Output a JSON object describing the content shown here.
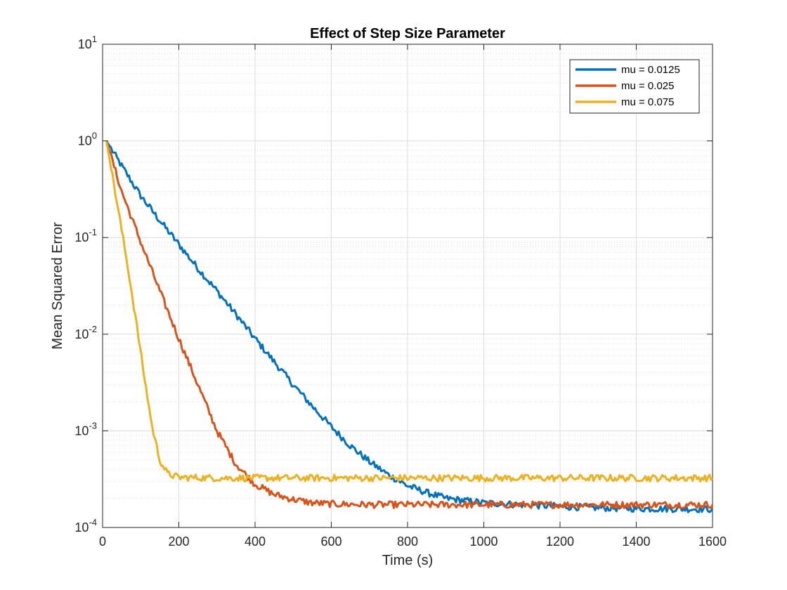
{
  "chart_data": {
    "type": "line",
    "title": "Effect of Step Size Parameter",
    "xlabel": "Time (s)",
    "ylabel": "Mean Squared Error",
    "xlim": [
      0,
      1600
    ],
    "ylim": [
      0.0001,
      10
    ],
    "yscale": "log",
    "grid": true,
    "minor_grid": true,
    "legend_position": "top-right",
    "x_ticks": [
      0,
      200,
      400,
      600,
      800,
      1000,
      1200,
      1400,
      1600
    ],
    "x_tick_labels": [
      "0",
      "200",
      "400",
      "600",
      "800",
      "1000",
      "1200",
      "1400",
      "1600"
    ],
    "y_ticks": [
      {
        "value": 0.0001,
        "base": "10",
        "exp": "-4"
      },
      {
        "value": 0.001,
        "base": "10",
        "exp": "-3"
      },
      {
        "value": 0.01,
        "base": "10",
        "exp": "-2"
      },
      {
        "value": 0.1,
        "base": "10",
        "exp": "-1"
      },
      {
        "value": 1,
        "base": "10",
        "exp": "0"
      },
      {
        "value": 10,
        "base": "10",
        "exp": "1"
      }
    ],
    "series": [
      {
        "name": "mu = 0.0125",
        "color": "#0072BD",
        "points": [
          [
            10,
            1.0
          ],
          [
            50,
            0.55
          ],
          [
            100,
            0.27
          ],
          [
            150,
            0.15
          ],
          [
            200,
            0.085
          ],
          [
            250,
            0.048
          ],
          [
            300,
            0.028
          ],
          [
            350,
            0.016
          ],
          [
            400,
            0.009
          ],
          [
            450,
            0.0052
          ],
          [
            500,
            0.003
          ],
          [
            550,
            0.0018
          ],
          [
            600,
            0.0011
          ],
          [
            650,
            0.0007
          ],
          [
            700,
            0.00048
          ],
          [
            750,
            0.00035
          ],
          [
            800,
            0.00027
          ],
          [
            850,
            0.00023
          ],
          [
            900,
            0.0002
          ],
          [
            950,
            0.00019
          ],
          [
            1000,
            0.00018
          ],
          [
            1100,
            0.000172
          ],
          [
            1200,
            0.000165
          ],
          [
            1300,
            0.00016
          ],
          [
            1400,
            0.000157
          ],
          [
            1500,
            0.000156
          ],
          [
            1600,
            0.000155
          ]
        ]
      },
      {
        "name": "mu = 0.025",
        "color": "#D95319",
        "points": [
          [
            10,
            1.0
          ],
          [
            50,
            0.3
          ],
          [
            100,
            0.09
          ],
          [
            150,
            0.028
          ],
          [
            200,
            0.009
          ],
          [
            250,
            0.003
          ],
          [
            300,
            0.001
          ],
          [
            350,
            0.00045
          ],
          [
            400,
            0.00028
          ],
          [
            450,
            0.00022
          ],
          [
            500,
            0.000195
          ],
          [
            550,
            0.00018
          ],
          [
            600,
            0.000175
          ],
          [
            700,
            0.000172
          ],
          [
            800,
            0.000172
          ],
          [
            900,
            0.000172
          ],
          [
            1000,
            0.000172
          ],
          [
            1100,
            0.000172
          ],
          [
            1200,
            0.000172
          ],
          [
            1300,
            0.000172
          ],
          [
            1400,
            0.000172
          ],
          [
            1500,
            0.000172
          ],
          [
            1600,
            0.000172
          ]
        ]
      },
      {
        "name": "mu = 0.075",
        "color": "#EDB120",
        "points": [
          [
            10,
            1.0
          ],
          [
            30,
            0.35
          ],
          [
            50,
            0.12
          ],
          [
            70,
            0.04
          ],
          [
            90,
            0.012
          ],
          [
            110,
            0.0035
          ],
          [
            130,
            0.0011
          ],
          [
            150,
            0.0005
          ],
          [
            170,
            0.00036
          ],
          [
            200,
            0.00033
          ],
          [
            300,
            0.000325
          ],
          [
            400,
            0.000325
          ],
          [
            500,
            0.000325
          ],
          [
            600,
            0.000325
          ],
          [
            700,
            0.000325
          ],
          [
            800,
            0.000325
          ],
          [
            900,
            0.000325
          ],
          [
            1000,
            0.000325
          ],
          [
            1100,
            0.000325
          ],
          [
            1200,
            0.000325
          ],
          [
            1300,
            0.000325
          ],
          [
            1400,
            0.000325
          ],
          [
            1500,
            0.000325
          ],
          [
            1600,
            0.000325
          ]
        ]
      }
    ]
  }
}
